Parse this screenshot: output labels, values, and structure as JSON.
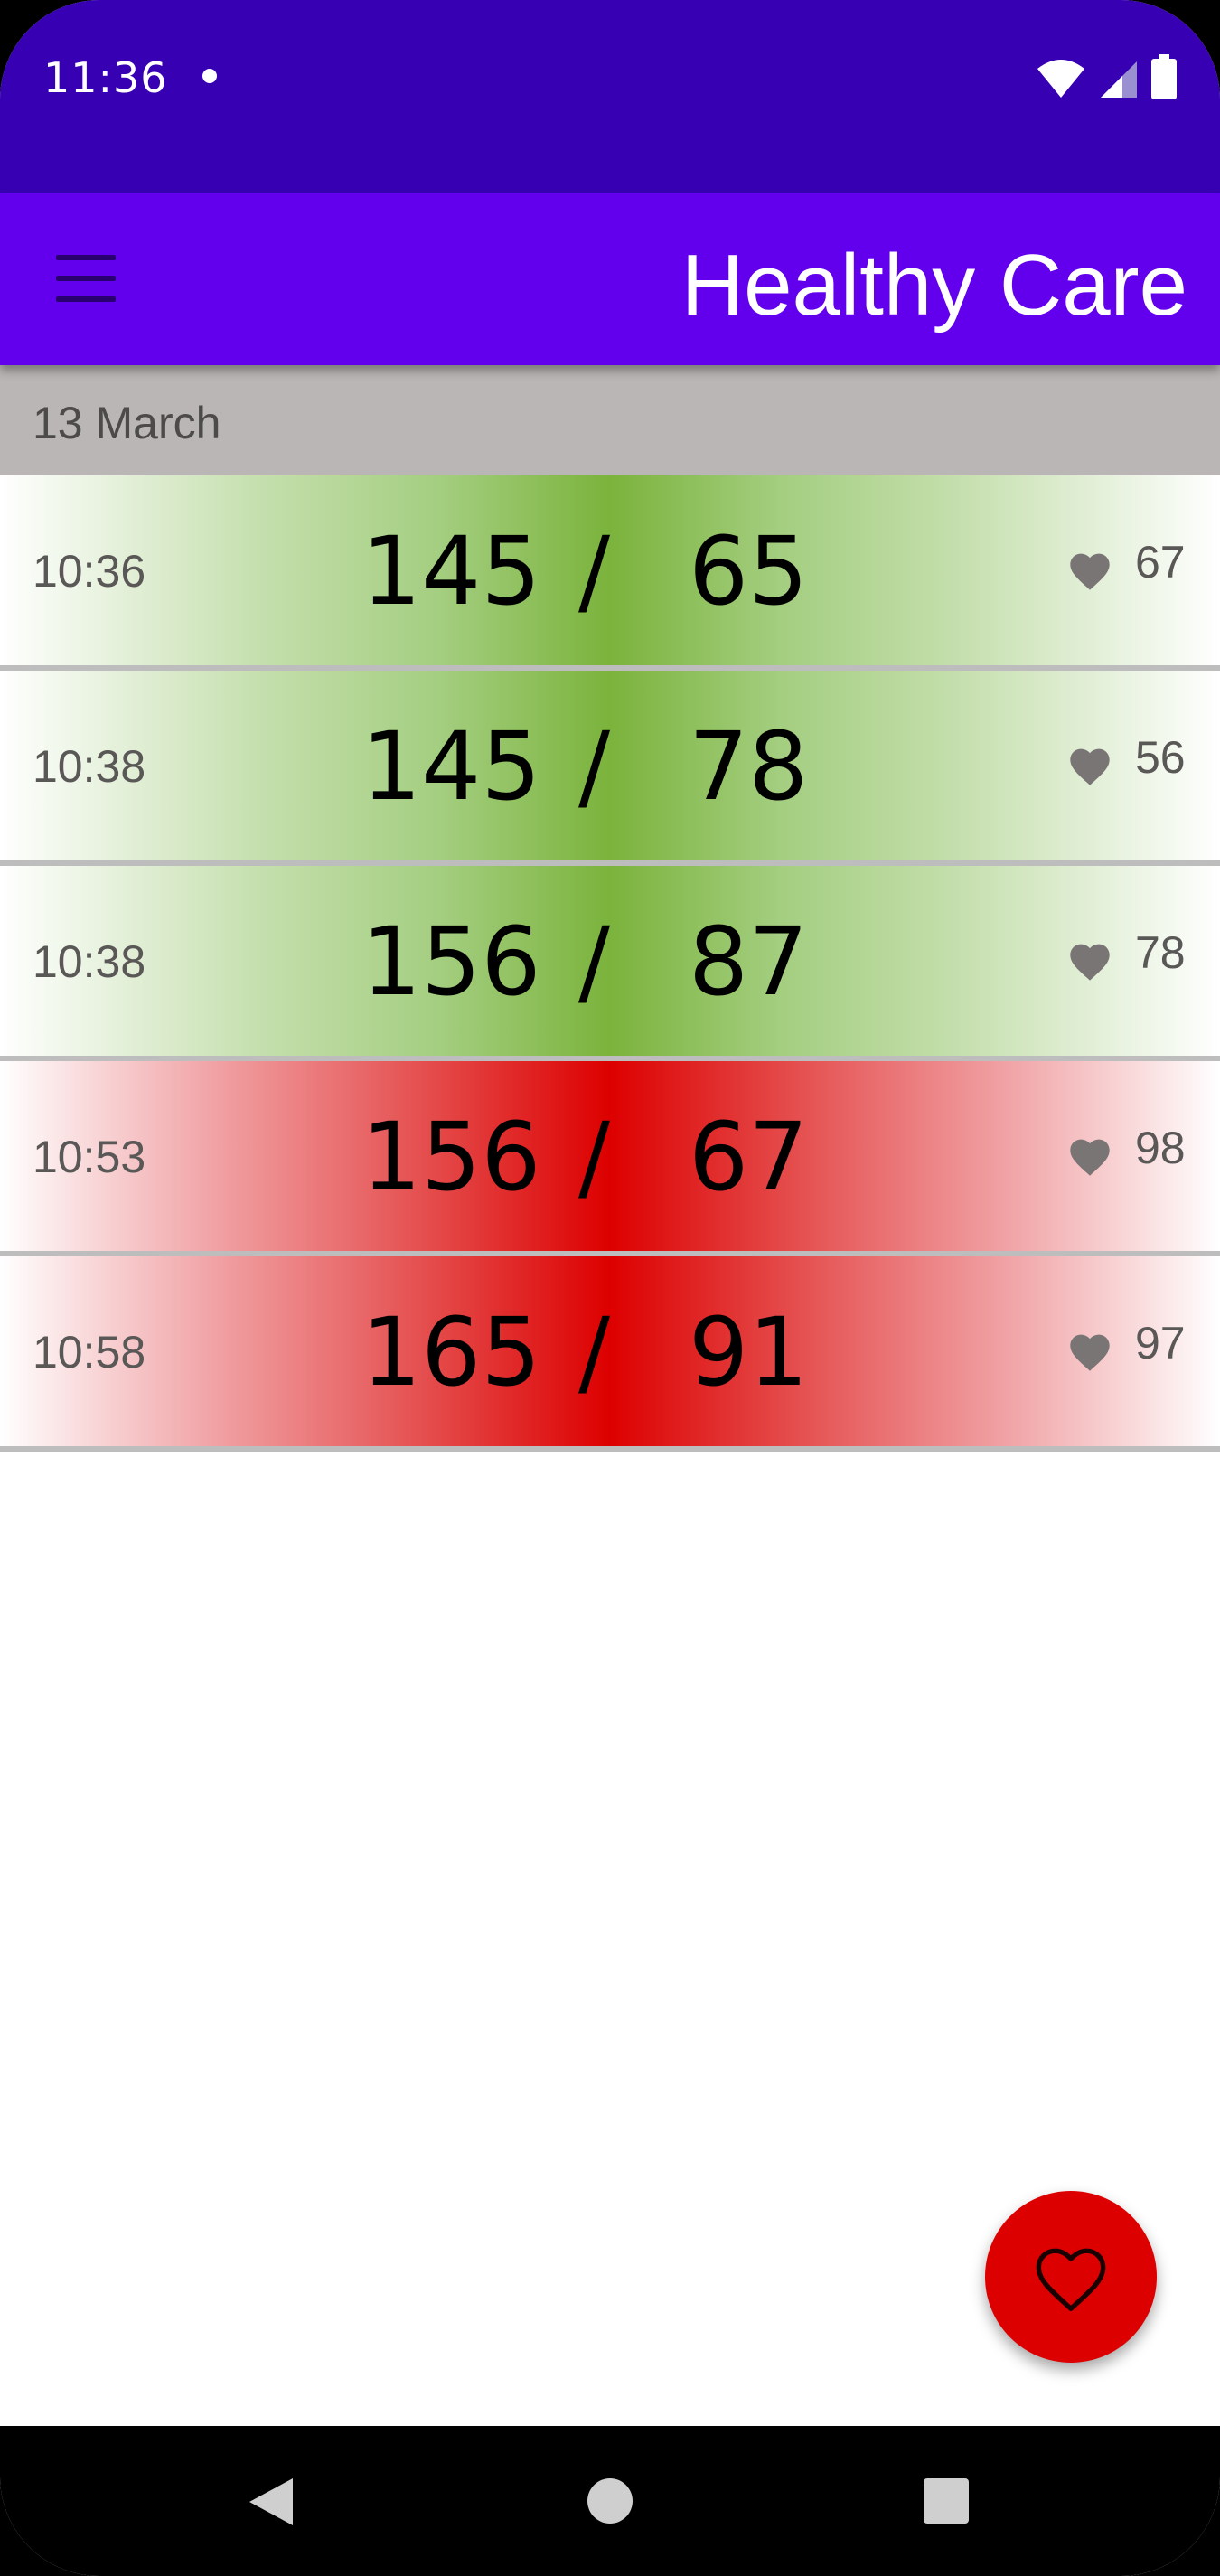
{
  "status_bar": {
    "time": "11:36",
    "icons": [
      "notification-dot-icon",
      "wifi-icon",
      "signal-icon",
      "battery-icon"
    ],
    "background": "#3700b3"
  },
  "app_bar": {
    "title": "Healthy Care",
    "menu_icon": "hamburger-menu-icon",
    "background": "#6200ee"
  },
  "date_header": {
    "label": "13 March"
  },
  "records": [
    {
      "time": "10:36",
      "systolic": "145",
      "separator": "/",
      "diastolic": "65",
      "pulse": "67",
      "status": "green"
    },
    {
      "time": "10:38",
      "systolic": "145",
      "separator": "/",
      "diastolic": "78",
      "pulse": "56",
      "status": "green"
    },
    {
      "time": "10:38",
      "systolic": "156",
      "separator": "/",
      "diastolic": "87",
      "pulse": "78",
      "status": "green"
    },
    {
      "time": "10:53",
      "systolic": "156",
      "separator": "/",
      "diastolic": "67",
      "pulse": "98",
      "status": "red"
    },
    {
      "time": "10:58",
      "systolic": "165",
      "separator": "/",
      "diastolic": "91",
      "pulse": "97",
      "status": "red"
    }
  ],
  "fab": {
    "icon": "heart-outline-icon",
    "color": "#dd0000"
  },
  "nav_bar": {
    "icons": [
      "back-icon",
      "home-icon",
      "recents-icon"
    ]
  },
  "colors": {
    "green_center": "#7bb33c",
    "red_center": "#dd0000",
    "row_divider": "#bdbdbd",
    "date_header_bg": "#bab6b6"
  }
}
